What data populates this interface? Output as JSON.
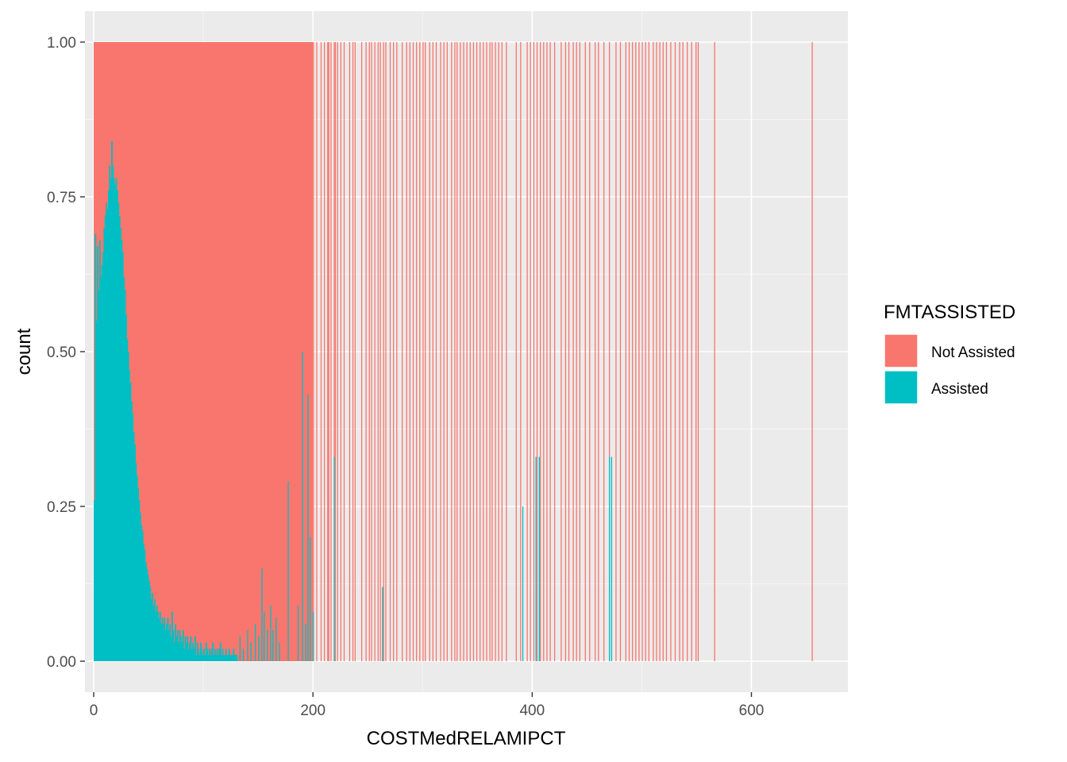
{
  "chart_data": {
    "type": "bar",
    "position": "fill",
    "xlabel": "COSTMedRELAMIPCT",
    "ylabel": "count",
    "xlim": [
      -8,
      688
    ],
    "ylim": [
      -0.05,
      1.05
    ],
    "x_ticks": [
      0,
      200,
      400,
      600
    ],
    "y_ticks": [
      0.0,
      0.25,
      0.5,
      0.75,
      1.0
    ],
    "x_tick_labels": [
      "0",
      "200",
      "400",
      "600"
    ],
    "y_tick_labels": [
      "0.00",
      "0.25",
      "0.50",
      "0.75",
      "1.00"
    ],
    "grid": true,
    "legend": {
      "title": "FMTASSISTED",
      "placement": "right",
      "entries": [
        {
          "label": "Not Assisted",
          "color": "#F8766D"
        },
        {
          "label": "Assisted",
          "color": "#00BFC4"
        }
      ]
    },
    "colors": {
      "not_assisted": "#F8766D",
      "assisted": "#00BFC4",
      "panel": "#EBEBEB",
      "grid_major": "#FFFFFF",
      "grid_minor": "#F5F5F5"
    },
    "series": [
      {
        "name": "Assisted",
        "points": [
          [
            0,
            0.26
          ],
          [
            1,
            0.69
          ],
          [
            2,
            0.55
          ],
          [
            3,
            0.67
          ],
          [
            4,
            0.6
          ],
          [
            5,
            0.68
          ],
          [
            6,
            0.62
          ],
          [
            7,
            0.64
          ],
          [
            8,
            0.66
          ],
          [
            9,
            0.7
          ],
          [
            10,
            0.72
          ],
          [
            11,
            0.74
          ],
          [
            12,
            0.73
          ],
          [
            13,
            0.76
          ],
          [
            14,
            0.8
          ],
          [
            15,
            0.78
          ],
          [
            16,
            0.84
          ],
          [
            17,
            0.8
          ],
          [
            18,
            0.78
          ],
          [
            19,
            0.77
          ],
          [
            20,
            0.78
          ],
          [
            21,
            0.76
          ],
          [
            22,
            0.74
          ],
          [
            23,
            0.72
          ],
          [
            24,
            0.7
          ],
          [
            25,
            0.68
          ],
          [
            26,
            0.66
          ],
          [
            27,
            0.62
          ],
          [
            28,
            0.6
          ],
          [
            29,
            0.56
          ],
          [
            30,
            0.52
          ],
          [
            31,
            0.5
          ],
          [
            32,
            0.47
          ],
          [
            33,
            0.45
          ],
          [
            34,
            0.42
          ],
          [
            35,
            0.4
          ],
          [
            36,
            0.37
          ],
          [
            37,
            0.35
          ],
          [
            38,
            0.32
          ],
          [
            39,
            0.3
          ],
          [
            40,
            0.28
          ],
          [
            41,
            0.26
          ],
          [
            42,
            0.24
          ],
          [
            43,
            0.22
          ],
          [
            44,
            0.21
          ],
          [
            45,
            0.19
          ],
          [
            46,
            0.18
          ],
          [
            47,
            0.16
          ],
          [
            48,
            0.15
          ],
          [
            49,
            0.14
          ],
          [
            50,
            0.13
          ],
          [
            51,
            0.12
          ],
          [
            52,
            0.1
          ],
          [
            53,
            0.11
          ],
          [
            54,
            0.09
          ],
          [
            55,
            0.1
          ],
          [
            56,
            0.08
          ],
          [
            57,
            0.09
          ],
          [
            58,
            0.08
          ],
          [
            59,
            0.07
          ],
          [
            60,
            0.08
          ],
          [
            61,
            0.06
          ],
          [
            62,
            0.07
          ],
          [
            63,
            0.06
          ],
          [
            64,
            0.07
          ],
          [
            65,
            0.05
          ],
          [
            66,
            0.06
          ],
          [
            67,
            0.07
          ],
          [
            68,
            0.05
          ],
          [
            69,
            0.06
          ],
          [
            70,
            0.04
          ],
          [
            71,
            0.08
          ],
          [
            72,
            0.05
          ],
          [
            73,
            0.03
          ],
          [
            74,
            0.06
          ],
          [
            75,
            0.04
          ],
          [
            76,
            0.05
          ],
          [
            77,
            0.03
          ],
          [
            78,
            0.05
          ],
          [
            79,
            0.04
          ],
          [
            80,
            0.03
          ],
          [
            81,
            0.05
          ],
          [
            82,
            0.02
          ],
          [
            83,
            0.04
          ],
          [
            84,
            0.03
          ],
          [
            85,
            0.04
          ],
          [
            86,
            0.02
          ],
          [
            87,
            0.03
          ],
          [
            88,
            0.04
          ],
          [
            89,
            0.02
          ],
          [
            90,
            0.03
          ],
          [
            91,
            0.02
          ],
          [
            92,
            0.04
          ],
          [
            93,
            0.01
          ],
          [
            94,
            0.03
          ],
          [
            95,
            0.02
          ],
          [
            96,
            0.01
          ],
          [
            97,
            0.03
          ],
          [
            98,
            0.02
          ],
          [
            99,
            0.01
          ],
          [
            100,
            0.02
          ],
          [
            101,
            0.01
          ],
          [
            102,
            0.03
          ],
          [
            103,
            0.02
          ],
          [
            104,
            0.01
          ],
          [
            105,
            0.02
          ],
          [
            106,
            0.01
          ],
          [
            107,
            0.02
          ],
          [
            108,
            0.03
          ],
          [
            109,
            0.01
          ],
          [
            110,
            0.02
          ],
          [
            111,
            0.01
          ],
          [
            112,
            0.02
          ],
          [
            113,
            0.01
          ],
          [
            114,
            0.02
          ],
          [
            115,
            0.03
          ],
          [
            116,
            0.01
          ],
          [
            117,
            0.02
          ],
          [
            118,
            0.01
          ],
          [
            119,
            0.01
          ],
          [
            120,
            0.02
          ],
          [
            121,
            0.01
          ],
          [
            122,
            0.01
          ],
          [
            123,
            0.02
          ],
          [
            124,
            0.01
          ],
          [
            125,
            0.01
          ],
          [
            126,
            0.01
          ],
          [
            127,
            0.02
          ],
          [
            128,
            0.01
          ],
          [
            129,
            0.01
          ],
          [
            130,
            0.01
          ],
          [
            133,
            0.04
          ],
          [
            136,
            0.02
          ],
          [
            140,
            0.05
          ],
          [
            143,
            0.03
          ],
          [
            147,
            0.06
          ],
          [
            150,
            0.04
          ],
          [
            153,
            0.15
          ],
          [
            155,
            0.08
          ],
          [
            158,
            0.05
          ],
          [
            161,
            0.09
          ],
          [
            163,
            0.05
          ],
          [
            166,
            0.07
          ],
          [
            169,
            0.03
          ],
          [
            177,
            0.29
          ],
          [
            186,
            0.09
          ],
          [
            190,
            0.5
          ],
          [
            193,
            0.06
          ],
          [
            195,
            0.43
          ],
          [
            197,
            0.2
          ],
          [
            200,
            0.08
          ],
          [
            219,
            0.33
          ],
          [
            263,
            0.12
          ],
          [
            391,
            0.25
          ],
          [
            403,
            0.33
          ],
          [
            406,
            0.33
          ],
          [
            470,
            0.33
          ],
          [
            472,
            0.33
          ]
        ]
      },
      {
        "name": "Not Assisted",
        "x": [
          0,
          200,
          203,
          207,
          210,
          213,
          214,
          216,
          219,
          220,
          222,
          225,
          228,
          233,
          236,
          238,
          244,
          248,
          251,
          253,
          256,
          259,
          261,
          264,
          266,
          270,
          273,
          276,
          281,
          285,
          288,
          291,
          294,
          297,
          300,
          302,
          306,
          309,
          312,
          316,
          319,
          322,
          326,
          329,
          331,
          334,
          337,
          340,
          343,
          346,
          349,
          352,
          355,
          358,
          361,
          363,
          366,
          369,
          372,
          376,
          385,
          389,
          395,
          398,
          401,
          404,
          407,
          410,
          413,
          416,
          420,
          426,
          430,
          433,
          437,
          440,
          443,
          448,
          452,
          457,
          460,
          465,
          470,
          476,
          480,
          485,
          488,
          491,
          494,
          497,
          500,
          503,
          506,
          510,
          513,
          516,
          519,
          522,
          526,
          530,
          534,
          537,
          541,
          545,
          549,
          551,
          566,
          655
        ]
      }
    ]
  }
}
